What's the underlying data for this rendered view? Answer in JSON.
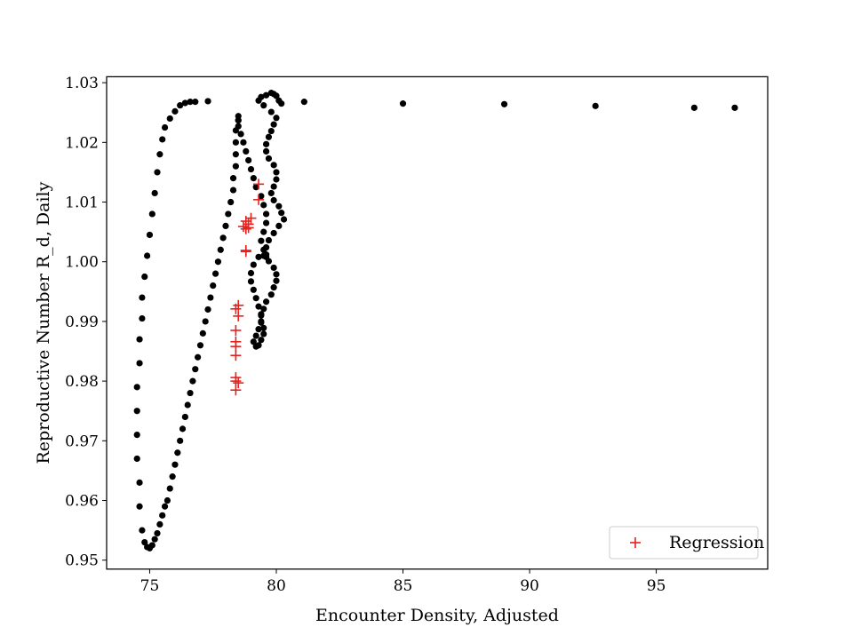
{
  "chart_data": {
    "type": "scatter",
    "title": "",
    "xlabel": "Encounter Density, Adjusted",
    "ylabel": "Reproductive Number R_d, Daily",
    "xlim": [
      73.3,
      99.4
    ],
    "ylim": [
      0.9485,
      1.031
    ],
    "x_ticks": [
      75,
      80,
      85,
      90,
      95
    ],
    "x_tick_labels": [
      "75",
      "80",
      "85",
      "90",
      "95"
    ],
    "y_ticks": [
      0.95,
      0.96,
      0.97,
      0.98,
      0.99,
      1.0,
      1.01,
      1.02,
      1.03
    ],
    "y_tick_labels": [
      "0.95",
      "0.96",
      "0.97",
      "0.98",
      "0.99",
      "1.00",
      "1.01",
      "1.02",
      "1.03"
    ],
    "grid": false,
    "legend_position": "lower-right",
    "colors": {
      "observed": "#000000",
      "regression": "#e8201c"
    },
    "series": [
      {
        "marker": "dot",
        "color": "#000000",
        "x": [
          98.1,
          96.5,
          92.6,
          89.0,
          85.0,
          81.1,
          80.2,
          80.1,
          80.0,
          79.9,
          79.8,
          79.6,
          79.4,
          79.3,
          79.5,
          79.8,
          80.0,
          79.9,
          79.8,
          79.7,
          79.6,
          79.6,
          79.7,
          79.9,
          80.0,
          80.0,
          79.9,
          79.8,
          79.9,
          80.1,
          80.2,
          80.3,
          80.1,
          79.9,
          79.7,
          79.6,
          79.6,
          79.7,
          79.9,
          80.0,
          80.0,
          79.9,
          79.8,
          79.6,
          79.5,
          79.4,
          79.4,
          79.3,
          79.2,
          79.1,
          79.2,
          79.3,
          79.4,
          79.5,
          79.5,
          79.4,
          79.4,
          79.3,
          79.2,
          79.1,
          79.0,
          79.0,
          79.1,
          79.3,
          79.5,
          79.6,
          79.5,
          79.4,
          79.5,
          79.6,
          79.6,
          79.5,
          79.4,
          79.2,
          79.1,
          79.0,
          78.9,
          78.8,
          78.7,
          78.6,
          78.5,
          78.5,
          78.5,
          78.5,
          78.4,
          78.4,
          78.4,
          78.4,
          78.3,
          78.3,
          78.2,
          78.1,
          78.0,
          77.9,
          77.8,
          77.7,
          77.6,
          77.5,
          77.4,
          77.3,
          77.2,
          77.1,
          77.0,
          76.9,
          76.8,
          76.7,
          76.6,
          76.5,
          76.4,
          76.3,
          76.2,
          76.1,
          76.0,
          75.9,
          75.8,
          75.7,
          75.6,
          75.5,
          75.4,
          75.3,
          75.2,
          75.1,
          75.0,
          74.9,
          74.8,
          74.7,
          74.6,
          74.6,
          74.5,
          74.5,
          74.5,
          74.5,
          74.6,
          74.6,
          74.7,
          74.7,
          74.8,
          74.9,
          75.0,
          75.1,
          75.2,
          75.3,
          75.4,
          75.5,
          75.6,
          75.8,
          76.0,
          76.2,
          76.4,
          76.6,
          76.8,
          77.3
        ],
        "y": [
          1.0258,
          1.0258,
          1.0261,
          1.0264,
          1.0265,
          1.0268,
          1.0265,
          1.027,
          1.0278,
          1.0281,
          1.0283,
          1.0279,
          1.0276,
          1.027,
          1.0262,
          1.0251,
          1.0241,
          1.023,
          1.0219,
          1.0209,
          1.0197,
          1.0185,
          1.0173,
          1.0162,
          1.015,
          1.0138,
          1.0126,
          1.0115,
          1.0103,
          1.0093,
          1.0082,
          1.0071,
          1.006,
          1.0048,
          1.0036,
          1.0024,
          1.0012,
          1.0001,
          0.999,
          0.9979,
          0.9968,
          0.9957,
          0.9945,
          0.9933,
          0.9921,
          0.991,
          0.9898,
          0.9887,
          0.9876,
          0.9866,
          0.9858,
          0.986,
          0.9869,
          0.9879,
          0.9889,
          0.99,
          0.9912,
          0.9925,
          0.9939,
          0.9953,
          0.9967,
          0.9981,
          0.9995,
          1.0008,
          1.001,
          1.0008,
          1.002,
          1.0035,
          1.005,
          1.0065,
          1.008,
          1.0095,
          1.011,
          1.0125,
          1.014,
          1.0155,
          1.017,
          1.0185,
          1.02,
          1.0214,
          1.0227,
          1.0237,
          1.0244,
          1.0237,
          1.022,
          1.02,
          1.018,
          1.016,
          1.014,
          1.012,
          1.01,
          1.008,
          1.006,
          1.004,
          1.002,
          1.0,
          0.998,
          0.996,
          0.994,
          0.992,
          0.99,
          0.988,
          0.986,
          0.984,
          0.982,
          0.98,
          0.978,
          0.976,
          0.974,
          0.972,
          0.97,
          0.968,
          0.966,
          0.964,
          0.962,
          0.96,
          0.959,
          0.9575,
          0.956,
          0.9545,
          0.9535,
          0.9525,
          0.952,
          0.9522,
          0.953,
          0.955,
          0.959,
          0.963,
          0.967,
          0.971,
          0.975,
          0.979,
          0.983,
          0.987,
          0.9905,
          0.994,
          0.9975,
          1.001,
          1.0045,
          1.008,
          1.0115,
          1.015,
          1.018,
          1.0205,
          1.0225,
          1.024,
          1.0252,
          1.0262,
          1.0266,
          1.0268,
          1.0268,
          1.0269
        ]
      },
      {
        "name": "Regression",
        "marker": "plus",
        "color": "#e8201c",
        "x": [
          79.3,
          79.3,
          79.0,
          78.8,
          78.9,
          78.7,
          78.9,
          78.8,
          78.8,
          78.8,
          78.5,
          78.4,
          78.5,
          78.4,
          78.4,
          78.4,
          78.4,
          78.4,
          78.4,
          78.5,
          78.4
        ],
        "y": [
          1.013,
          1.0104,
          1.0073,
          1.0068,
          1.0063,
          1.0059,
          1.0057,
          1.0055,
          1.0019,
          1.0017,
          0.9927,
          0.9921,
          0.9909,
          0.9885,
          0.9866,
          0.9858,
          0.9843,
          0.9806,
          0.98,
          0.9797,
          0.9785
        ]
      }
    ]
  }
}
